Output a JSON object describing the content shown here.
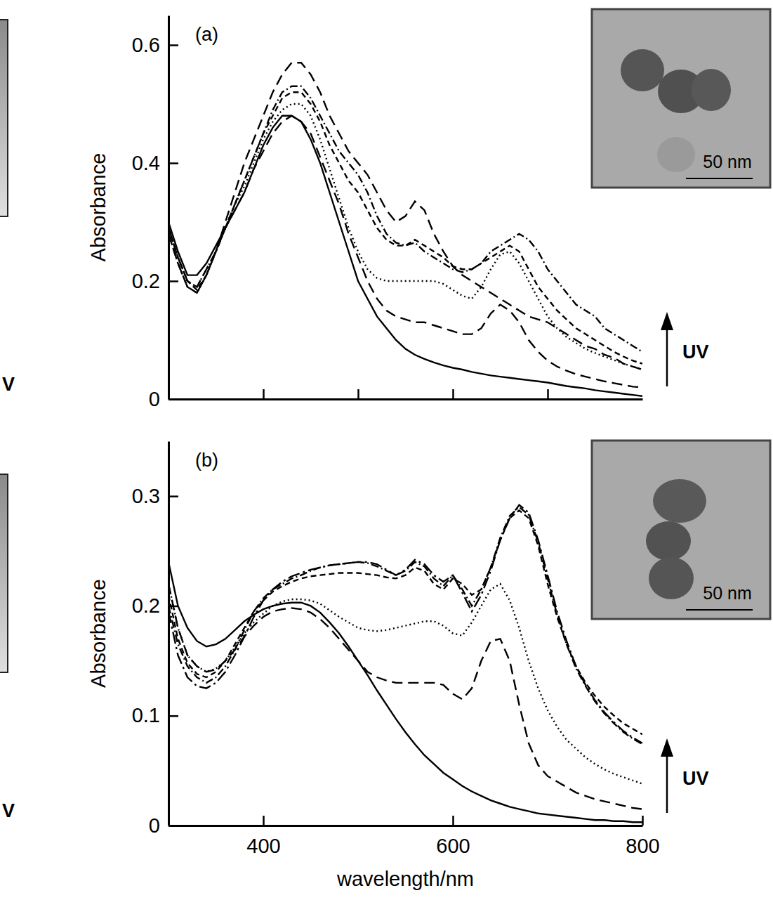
{
  "chart_data": [
    {
      "type": "line",
      "title": "(a)",
      "y_label": "Absorbance",
      "color": "#000000",
      "tick_labels": "y",
      "xlim": [
        300,
        800
      ],
      "xticks": [
        400,
        500,
        600,
        700
      ],
      "ylim": [
        0,
        0.65
      ],
      "yticks": [
        0,
        0.2,
        0.4,
        0.6
      ],
      "annotations": [
        "UV",
        "50 nm",
        "V"
      ],
      "x": [
        300,
        310,
        320,
        330,
        340,
        350,
        360,
        370,
        380,
        390,
        400,
        410,
        420,
        430,
        440,
        450,
        460,
        470,
        480,
        490,
        500,
        510,
        520,
        530,
        540,
        550,
        560,
        570,
        580,
        590,
        600,
        610,
        620,
        630,
        640,
        650,
        660,
        670,
        680,
        690,
        700,
        710,
        720,
        730,
        740,
        750,
        760,
        770,
        780,
        790,
        800
      ],
      "series": [
        {
          "line_style": "solid",
          "values": [
            0.3,
            0.25,
            0.21,
            0.21,
            0.23,
            0.26,
            0.29,
            0.32,
            0.35,
            0.39,
            0.43,
            0.46,
            0.48,
            0.48,
            0.47,
            0.44,
            0.4,
            0.35,
            0.3,
            0.25,
            0.2,
            0.17,
            0.14,
            0.12,
            0.1,
            0.085,
            0.075,
            0.068,
            0.062,
            0.057,
            0.053,
            0.05,
            0.046,
            0.043,
            0.04,
            0.038,
            0.036,
            0.034,
            0.032,
            0.03,
            0.028,
            0.025,
            0.022,
            0.02,
            0.018,
            0.015,
            0.013,
            0.011,
            0.009,
            0.007,
            0.005
          ]
        },
        {
          "line_style": "long-dash",
          "values": [
            0.29,
            0.24,
            0.2,
            0.19,
            0.22,
            0.25,
            0.29,
            0.32,
            0.35,
            0.39,
            0.42,
            0.45,
            0.47,
            0.48,
            0.47,
            0.45,
            0.41,
            0.37,
            0.33,
            0.28,
            0.24,
            0.2,
            0.17,
            0.15,
            0.14,
            0.135,
            0.13,
            0.13,
            0.125,
            0.12,
            0.115,
            0.11,
            0.11,
            0.12,
            0.145,
            0.16,
            0.15,
            0.13,
            0.1,
            0.08,
            0.065,
            0.055,
            0.048,
            0.042,
            0.038,
            0.034,
            0.03,
            0.027,
            0.024,
            0.021,
            0.02
          ]
        },
        {
          "line_style": "dotted",
          "values": [
            0.29,
            0.24,
            0.2,
            0.19,
            0.22,
            0.25,
            0.29,
            0.33,
            0.36,
            0.4,
            0.44,
            0.47,
            0.49,
            0.5,
            0.5,
            0.48,
            0.44,
            0.39,
            0.34,
            0.29,
            0.25,
            0.22,
            0.205,
            0.2,
            0.2,
            0.2,
            0.2,
            0.2,
            0.2,
            0.195,
            0.185,
            0.175,
            0.17,
            0.19,
            0.22,
            0.245,
            0.25,
            0.23,
            0.2,
            0.17,
            0.14,
            0.12,
            0.105,
            0.095,
            0.085,
            0.078,
            0.072,
            0.066,
            0.06,
            0.055,
            0.05
          ]
        },
        {
          "line_style": "dashed",
          "values": [
            0.29,
            0.24,
            0.2,
            0.185,
            0.21,
            0.25,
            0.29,
            0.33,
            0.37,
            0.41,
            0.45,
            0.48,
            0.51,
            0.52,
            0.52,
            0.5,
            0.47,
            0.43,
            0.4,
            0.37,
            0.35,
            0.32,
            0.29,
            0.27,
            0.26,
            0.26,
            0.27,
            0.26,
            0.25,
            0.24,
            0.225,
            0.22,
            0.22,
            0.23,
            0.24,
            0.25,
            0.26,
            0.25,
            0.22,
            0.19,
            0.17,
            0.15,
            0.135,
            0.12,
            0.11,
            0.1,
            0.09,
            0.08,
            0.072,
            0.065,
            0.06
          ]
        },
        {
          "line_style": "dash-dot",
          "values": [
            0.28,
            0.23,
            0.19,
            0.18,
            0.21,
            0.25,
            0.29,
            0.33,
            0.37,
            0.41,
            0.45,
            0.49,
            0.52,
            0.53,
            0.53,
            0.51,
            0.48,
            0.45,
            0.42,
            0.4,
            0.38,
            0.35,
            0.31,
            0.28,
            0.265,
            0.26,
            0.265,
            0.25,
            0.24,
            0.23,
            0.22,
            0.215,
            0.22,
            0.23,
            0.25,
            0.26,
            0.27,
            0.28,
            0.27,
            0.25,
            0.22,
            0.2,
            0.18,
            0.16,
            0.15,
            0.14,
            0.12,
            0.11,
            0.1,
            0.09,
            0.08
          ]
        },
        {
          "line_style": "long-dash",
          "values": [
            0.28,
            0.23,
            0.19,
            0.18,
            0.21,
            0.25,
            0.3,
            0.35,
            0.4,
            0.44,
            0.48,
            0.52,
            0.55,
            0.57,
            0.57,
            0.55,
            0.52,
            0.48,
            0.45,
            0.42,
            0.4,
            0.38,
            0.35,
            0.32,
            0.3,
            0.31,
            0.335,
            0.32,
            0.28,
            0.25,
            0.225,
            0.21,
            0.2,
            0.19,
            0.18,
            0.17,
            0.16,
            0.15,
            0.14,
            0.135,
            0.13,
            0.12,
            0.11,
            0.1,
            0.09,
            0.085,
            0.075,
            0.07,
            0.06,
            0.055,
            0.05
          ]
        }
      ]
    },
    {
      "type": "line",
      "title": "(b)",
      "x_label": "wavelength/nm",
      "y_label": "Absorbance",
      "color": "#000000",
      "xlim": [
        300,
        800
      ],
      "xticks": [
        400,
        600,
        800
      ],
      "ylim": [
        0,
        0.35
      ],
      "yticks": [
        0,
        0.1,
        0.2,
        0.3
      ],
      "annotations": [
        "UV",
        "50 nm",
        "V"
      ],
      "x": [
        300,
        310,
        320,
        330,
        340,
        350,
        360,
        370,
        380,
        390,
        400,
        410,
        420,
        430,
        440,
        450,
        460,
        470,
        480,
        490,
        500,
        510,
        520,
        530,
        540,
        550,
        560,
        570,
        580,
        590,
        600,
        610,
        620,
        630,
        640,
        650,
        660,
        670,
        680,
        690,
        700,
        710,
        720,
        730,
        740,
        750,
        760,
        770,
        780,
        790,
        800
      ],
      "series": [
        {
          "line_style": "solid",
          "values": [
            0.24,
            0.2,
            0.18,
            0.168,
            0.163,
            0.165,
            0.17,
            0.178,
            0.186,
            0.192,
            0.197,
            0.2,
            0.202,
            0.203,
            0.203,
            0.2,
            0.194,
            0.185,
            0.175,
            0.163,
            0.15,
            0.137,
            0.123,
            0.11,
            0.097,
            0.085,
            0.074,
            0.064,
            0.056,
            0.048,
            0.042,
            0.036,
            0.031,
            0.027,
            0.023,
            0.02,
            0.017,
            0.015,
            0.013,
            0.011,
            0.01,
            0.009,
            0.008,
            0.007,
            0.006,
            0.005,
            0.005,
            0.004,
            0.004,
            0.003,
            0.003
          ]
        },
        {
          "line_style": "long-dash",
          "values": [
            0.22,
            0.18,
            0.155,
            0.145,
            0.14,
            0.142,
            0.15,
            0.16,
            0.172,
            0.182,
            0.19,
            0.195,
            0.197,
            0.198,
            0.197,
            0.194,
            0.188,
            0.18,
            0.17,
            0.16,
            0.15,
            0.14,
            0.135,
            0.132,
            0.13,
            0.13,
            0.13,
            0.13,
            0.13,
            0.128,
            0.12,
            0.115,
            0.125,
            0.15,
            0.168,
            0.17,
            0.15,
            0.11,
            0.075,
            0.055,
            0.045,
            0.04,
            0.035,
            0.03,
            0.027,
            0.024,
            0.022,
            0.02,
            0.018,
            0.016,
            0.015
          ]
        },
        {
          "line_style": "dotted",
          "values": [
            0.22,
            0.18,
            0.155,
            0.145,
            0.14,
            0.143,
            0.15,
            0.162,
            0.175,
            0.185,
            0.193,
            0.2,
            0.204,
            0.206,
            0.206,
            0.205,
            0.202,
            0.196,
            0.19,
            0.185,
            0.18,
            0.178,
            0.177,
            0.178,
            0.18,
            0.182,
            0.184,
            0.186,
            0.186,
            0.182,
            0.175,
            0.173,
            0.185,
            0.2,
            0.215,
            0.22,
            0.205,
            0.18,
            0.15,
            0.125,
            0.105,
            0.09,
            0.078,
            0.07,
            0.062,
            0.056,
            0.051,
            0.047,
            0.044,
            0.041,
            0.038
          ]
        },
        {
          "line_style": "dashed",
          "values": [
            0.21,
            0.17,
            0.148,
            0.138,
            0.135,
            0.14,
            0.15,
            0.165,
            0.18,
            0.195,
            0.205,
            0.213,
            0.218,
            0.222,
            0.225,
            0.227,
            0.228,
            0.229,
            0.23,
            0.23,
            0.23,
            0.229,
            0.228,
            0.226,
            0.225,
            0.228,
            0.235,
            0.232,
            0.22,
            0.215,
            0.225,
            0.22,
            0.21,
            0.215,
            0.235,
            0.26,
            0.28,
            0.287,
            0.28,
            0.255,
            0.22,
            0.19,
            0.165,
            0.145,
            0.13,
            0.118,
            0.108,
            0.1,
            0.093,
            0.088,
            0.083
          ]
        },
        {
          "line_style": "dash-dot",
          "values": [
            0.2,
            0.165,
            0.145,
            0.135,
            0.13,
            0.135,
            0.145,
            0.16,
            0.178,
            0.195,
            0.207,
            0.215,
            0.22,
            0.225,
            0.228,
            0.232,
            0.235,
            0.237,
            0.238,
            0.239,
            0.24,
            0.239,
            0.236,
            0.232,
            0.228,
            0.232,
            0.24,
            0.236,
            0.225,
            0.218,
            0.228,
            0.215,
            0.2,
            0.215,
            0.235,
            0.262,
            0.282,
            0.29,
            0.283,
            0.258,
            0.225,
            0.192,
            0.165,
            0.143,
            0.127,
            0.113,
            0.102,
            0.093,
            0.085,
            0.079,
            0.074
          ]
        },
        {
          "line_style": "long-dash-dot",
          "values": [
            0.195,
            0.155,
            0.135,
            0.127,
            0.125,
            0.13,
            0.14,
            0.155,
            0.172,
            0.19,
            0.205,
            0.215,
            0.222,
            0.227,
            0.23,
            0.233,
            0.235,
            0.237,
            0.238,
            0.239,
            0.24,
            0.24,
            0.238,
            0.233,
            0.228,
            0.233,
            0.242,
            0.238,
            0.228,
            0.222,
            0.228,
            0.212,
            0.195,
            0.21,
            0.232,
            0.26,
            0.28,
            0.292,
            0.285,
            0.26,
            0.228,
            0.195,
            0.168,
            0.145,
            0.128,
            0.114,
            0.103,
            0.094,
            0.086,
            0.08,
            0.075
          ]
        }
      ]
    }
  ]
}
